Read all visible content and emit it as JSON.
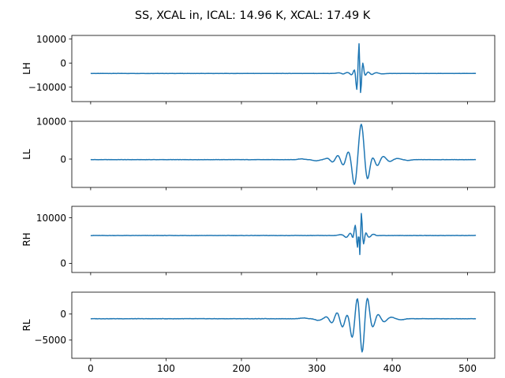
{
  "chart_data": {
    "type": "line",
    "title": "SS, XCAL in, ICAL: 14.96 K, XCAL: 17.49 K",
    "sharex": true,
    "xlim": [
      -25,
      536
    ],
    "xticks": [
      0,
      100,
      200,
      300,
      400,
      500
    ],
    "line_color": "#1f77b4",
    "grid": false,
    "panels": [
      {
        "ylabel": "LH",
        "ylim": [
          -16000,
          11500
        ],
        "yticks": [
          -10000,
          0,
          10000
        ],
        "ytick_labels": [
          "−10000",
          "0",
          "10000"
        ],
        "baseline": -4300,
        "center": 357,
        "bumps": [
          {
            "offset": -28,
            "amp": 250,
            "width": 3,
            "sign": 1
          },
          {
            "offset": -22,
            "amp": 300,
            "width": 2,
            "sign": -1
          },
          {
            "offset": -16,
            "amp": 400,
            "width": 3,
            "sign": 1
          },
          {
            "offset": -11,
            "amp": 700,
            "width": 2,
            "sign": -1
          },
          {
            "offset": -7,
            "amp": 1800,
            "width": 1.5,
            "sign": 1
          },
          {
            "offset": -4,
            "amp": 7000,
            "width": 1.2,
            "sign": -1
          },
          {
            "offset": -1,
            "amp": 14000,
            "width": 1.0,
            "sign": 1
          },
          {
            "offset": 1,
            "amp": 10000,
            "width": 1.0,
            "sign": -1
          },
          {
            "offset": 4,
            "amp": 4500,
            "width": 1.2,
            "sign": 1
          },
          {
            "offset": 7,
            "amp": 1000,
            "width": 1.5,
            "sign": -1
          },
          {
            "offset": 11,
            "amp": 600,
            "width": 2,
            "sign": 1
          },
          {
            "offset": 16,
            "amp": 500,
            "width": 2,
            "sign": -1
          },
          {
            "offset": 22,
            "amp": 300,
            "width": 3,
            "sign": 1
          },
          {
            "offset": 30,
            "amp": 200,
            "width": 3,
            "sign": -1
          }
        ]
      },
      {
        "ylabel": "LL",
        "ylim": [
          -7500,
          10000
        ],
        "yticks": [
          0,
          10000
        ],
        "ytick_labels": [
          "0",
          "10000"
        ],
        "baseline": -150,
        "center": 359,
        "bumps": [
          {
            "offset": -80,
            "amp": 200,
            "width": 4,
            "sign": 1
          },
          {
            "offset": -60,
            "amp": 300,
            "width": 4,
            "sign": -1
          },
          {
            "offset": -45,
            "amp": 400,
            "width": 3,
            "sign": 1
          },
          {
            "offset": -38,
            "amp": 700,
            "width": 3,
            "sign": -1
          },
          {
            "offset": -31,
            "amp": 1200,
            "width": 3,
            "sign": 1
          },
          {
            "offset": -24,
            "amp": 1600,
            "width": 3,
            "sign": -1
          },
          {
            "offset": -17,
            "amp": 2300,
            "width": 3,
            "sign": 1
          },
          {
            "offset": -9,
            "amp": 6800,
            "width": 3,
            "sign": -1
          },
          {
            "offset": 0,
            "amp": 9600,
            "width": 3.2,
            "sign": 1
          },
          {
            "offset": 8,
            "amp": 5500,
            "width": 3,
            "sign": -1
          },
          {
            "offset": 15,
            "amp": 1000,
            "width": 3,
            "sign": 1
          },
          {
            "offset": 21,
            "amp": 1700,
            "width": 3,
            "sign": -1
          },
          {
            "offset": 29,
            "amp": 900,
            "width": 3,
            "sign": 1
          },
          {
            "offset": 38,
            "amp": 500,
            "width": 3,
            "sign": -1
          },
          {
            "offset": 48,
            "amp": 300,
            "width": 4,
            "sign": 1
          },
          {
            "offset": 62,
            "amp": 200,
            "width": 4,
            "sign": -1
          }
        ]
      },
      {
        "ylabel": "RH",
        "ylim": [
          -2000,
          12500
        ],
        "yticks": [
          0,
          10000
        ],
        "ytick_labels": [
          "0",
          "10000"
        ],
        "baseline": 6100,
        "center": 357,
        "bumps": [
          {
            "offset": -26,
            "amp": 200,
            "width": 3,
            "sign": 1
          },
          {
            "offset": -18,
            "amp": 400,
            "width": 2,
            "sign": -1
          },
          {
            "offset": -12,
            "amp": 600,
            "width": 2,
            "sign": 1
          },
          {
            "offset": -9,
            "amp": 900,
            "width": 1.5,
            "sign": -1
          },
          {
            "offset": -6,
            "amp": 2500,
            "width": 1.5,
            "sign": 1
          },
          {
            "offset": -3,
            "amp": 3500,
            "width": 1.2,
            "sign": -1
          },
          {
            "offset": -1,
            "amp": 4500,
            "width": 1.0,
            "sign": 1
          },
          {
            "offset": 0,
            "amp": 7500,
            "width": 0.9,
            "sign": -1
          },
          {
            "offset": 2,
            "amp": 5500,
            "width": 1.0,
            "sign": 1
          },
          {
            "offset": 5,
            "amp": 2000,
            "width": 1.2,
            "sign": -1
          },
          {
            "offset": 8,
            "amp": 700,
            "width": 1.5,
            "sign": 1
          },
          {
            "offset": 12,
            "amp": 400,
            "width": 2,
            "sign": -1
          },
          {
            "offset": 18,
            "amp": 300,
            "width": 2,
            "sign": 1
          }
        ]
      },
      {
        "ylabel": "RL",
        "ylim": [
          -8500,
          4200
        ],
        "yticks": [
          -5000,
          0
        ],
        "ytick_labels": [
          "−5000",
          "0"
        ],
        "baseline": -900,
        "center": 357,
        "bumps": [
          {
            "offset": -75,
            "amp": 150,
            "width": 4,
            "sign": 1
          },
          {
            "offset": -55,
            "amp": 300,
            "width": 4,
            "sign": -1
          },
          {
            "offset": -44,
            "amp": 400,
            "width": 3,
            "sign": 1
          },
          {
            "offset": -37,
            "amp": 900,
            "width": 3,
            "sign": -1
          },
          {
            "offset": -30,
            "amp": 1300,
            "width": 3,
            "sign": 1
          },
          {
            "offset": -23,
            "amp": 1700,
            "width": 3,
            "sign": -1
          },
          {
            "offset": -17,
            "amp": 1000,
            "width": 2.5,
            "sign": 1
          },
          {
            "offset": -10,
            "amp": 3700,
            "width": 2.6,
            "sign": -1
          },
          {
            "offset": -3,
            "amp": 4400,
            "width": 2.6,
            "sign": 1
          },
          {
            "offset": 3,
            "amp": 6800,
            "width": 2.6,
            "sign": -1
          },
          {
            "offset": 10,
            "amp": 4200,
            "width": 2.6,
            "sign": 1
          },
          {
            "offset": 17,
            "amp": 1700,
            "width": 3,
            "sign": -1
          },
          {
            "offset": 24,
            "amp": 900,
            "width": 3,
            "sign": 1
          },
          {
            "offset": 32,
            "amp": 600,
            "width": 3,
            "sign": -1
          },
          {
            "offset": 42,
            "amp": 300,
            "width": 3,
            "sign": 1
          },
          {
            "offset": 55,
            "amp": 200,
            "width": 4,
            "sign": -1
          }
        ]
      }
    ],
    "x_range": [
      0,
      511
    ],
    "noise_amp": 60
  }
}
